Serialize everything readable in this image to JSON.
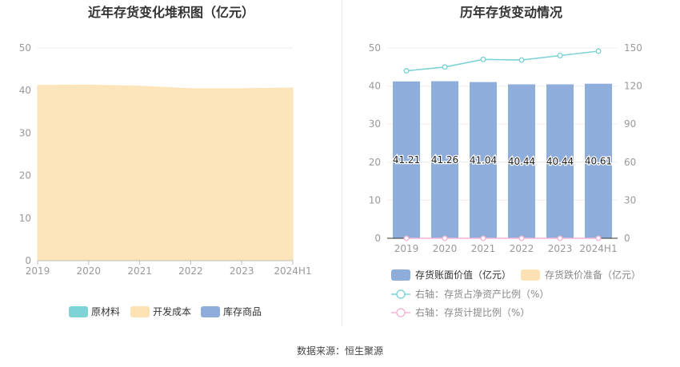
{
  "source_text": "数据来源：恒生聚源",
  "chart_data": [
    {
      "type": "area",
      "title": "近年存货变化堆积图（亿元）",
      "categories": [
        "2019",
        "2020",
        "2021",
        "2022",
        "2023",
        "2024H1"
      ],
      "ylim": [
        0,
        50
      ],
      "yticks": [
        0,
        10,
        20,
        30,
        40,
        50
      ],
      "series": [
        {
          "name": "原材料",
          "color": "#7fd3d6",
          "values": [
            0,
            0,
            0,
            0,
            0,
            0
          ]
        },
        {
          "name": "开发成本",
          "color": "#fde2b4",
          "values": [
            41.21,
            41.26,
            41.04,
            40.44,
            40.44,
            40.61
          ]
        },
        {
          "name": "库存商品",
          "color": "#8eaddb",
          "values": [
            0,
            0,
            0,
            0,
            0,
            0
          ]
        }
      ],
      "legend_position": "bottom",
      "grid": true
    },
    {
      "type": "bar",
      "title": "历年存货变动情况",
      "categories": [
        "2019",
        "2020",
        "2021",
        "2022",
        "2023",
        "2024H1"
      ],
      "ylim": [
        0,
        50
      ],
      "yticks": [
        0,
        10,
        20,
        30,
        40,
        50
      ],
      "y2lim": [
        0,
        150
      ],
      "y2ticks": [
        0,
        30,
        60,
        90,
        120,
        150
      ],
      "series": [
        {
          "name": "存货账面价值（亿元）",
          "kind": "bar",
          "axis": "left",
          "color": "#8eaddb",
          "values": [
            41.21,
            41.26,
            41.04,
            40.44,
            40.44,
            40.61
          ],
          "labels": [
            "41.21",
            "41.26",
            "41.04",
            "40.44",
            "40.44",
            "40.61"
          ]
        },
        {
          "name": "存货跌价准备（亿元）",
          "kind": "bar",
          "axis": "left",
          "color": "#fde2b4",
          "values": [
            0,
            0,
            0,
            0,
            0,
            0
          ]
        },
        {
          "name": "右轴：存货占净资产比例（%）",
          "kind": "line",
          "axis": "right",
          "color": "#7fd3d6",
          "values": [
            132,
            135,
            141,
            140.5,
            144,
            147.5
          ]
        },
        {
          "name": "右轴：存货计提比例（%）",
          "kind": "line",
          "axis": "right",
          "color": "#f3b6d6",
          "values": [
            0,
            0,
            0,
            0,
            0,
            0
          ]
        }
      ],
      "legend_position": "bottom",
      "grid": true
    }
  ]
}
